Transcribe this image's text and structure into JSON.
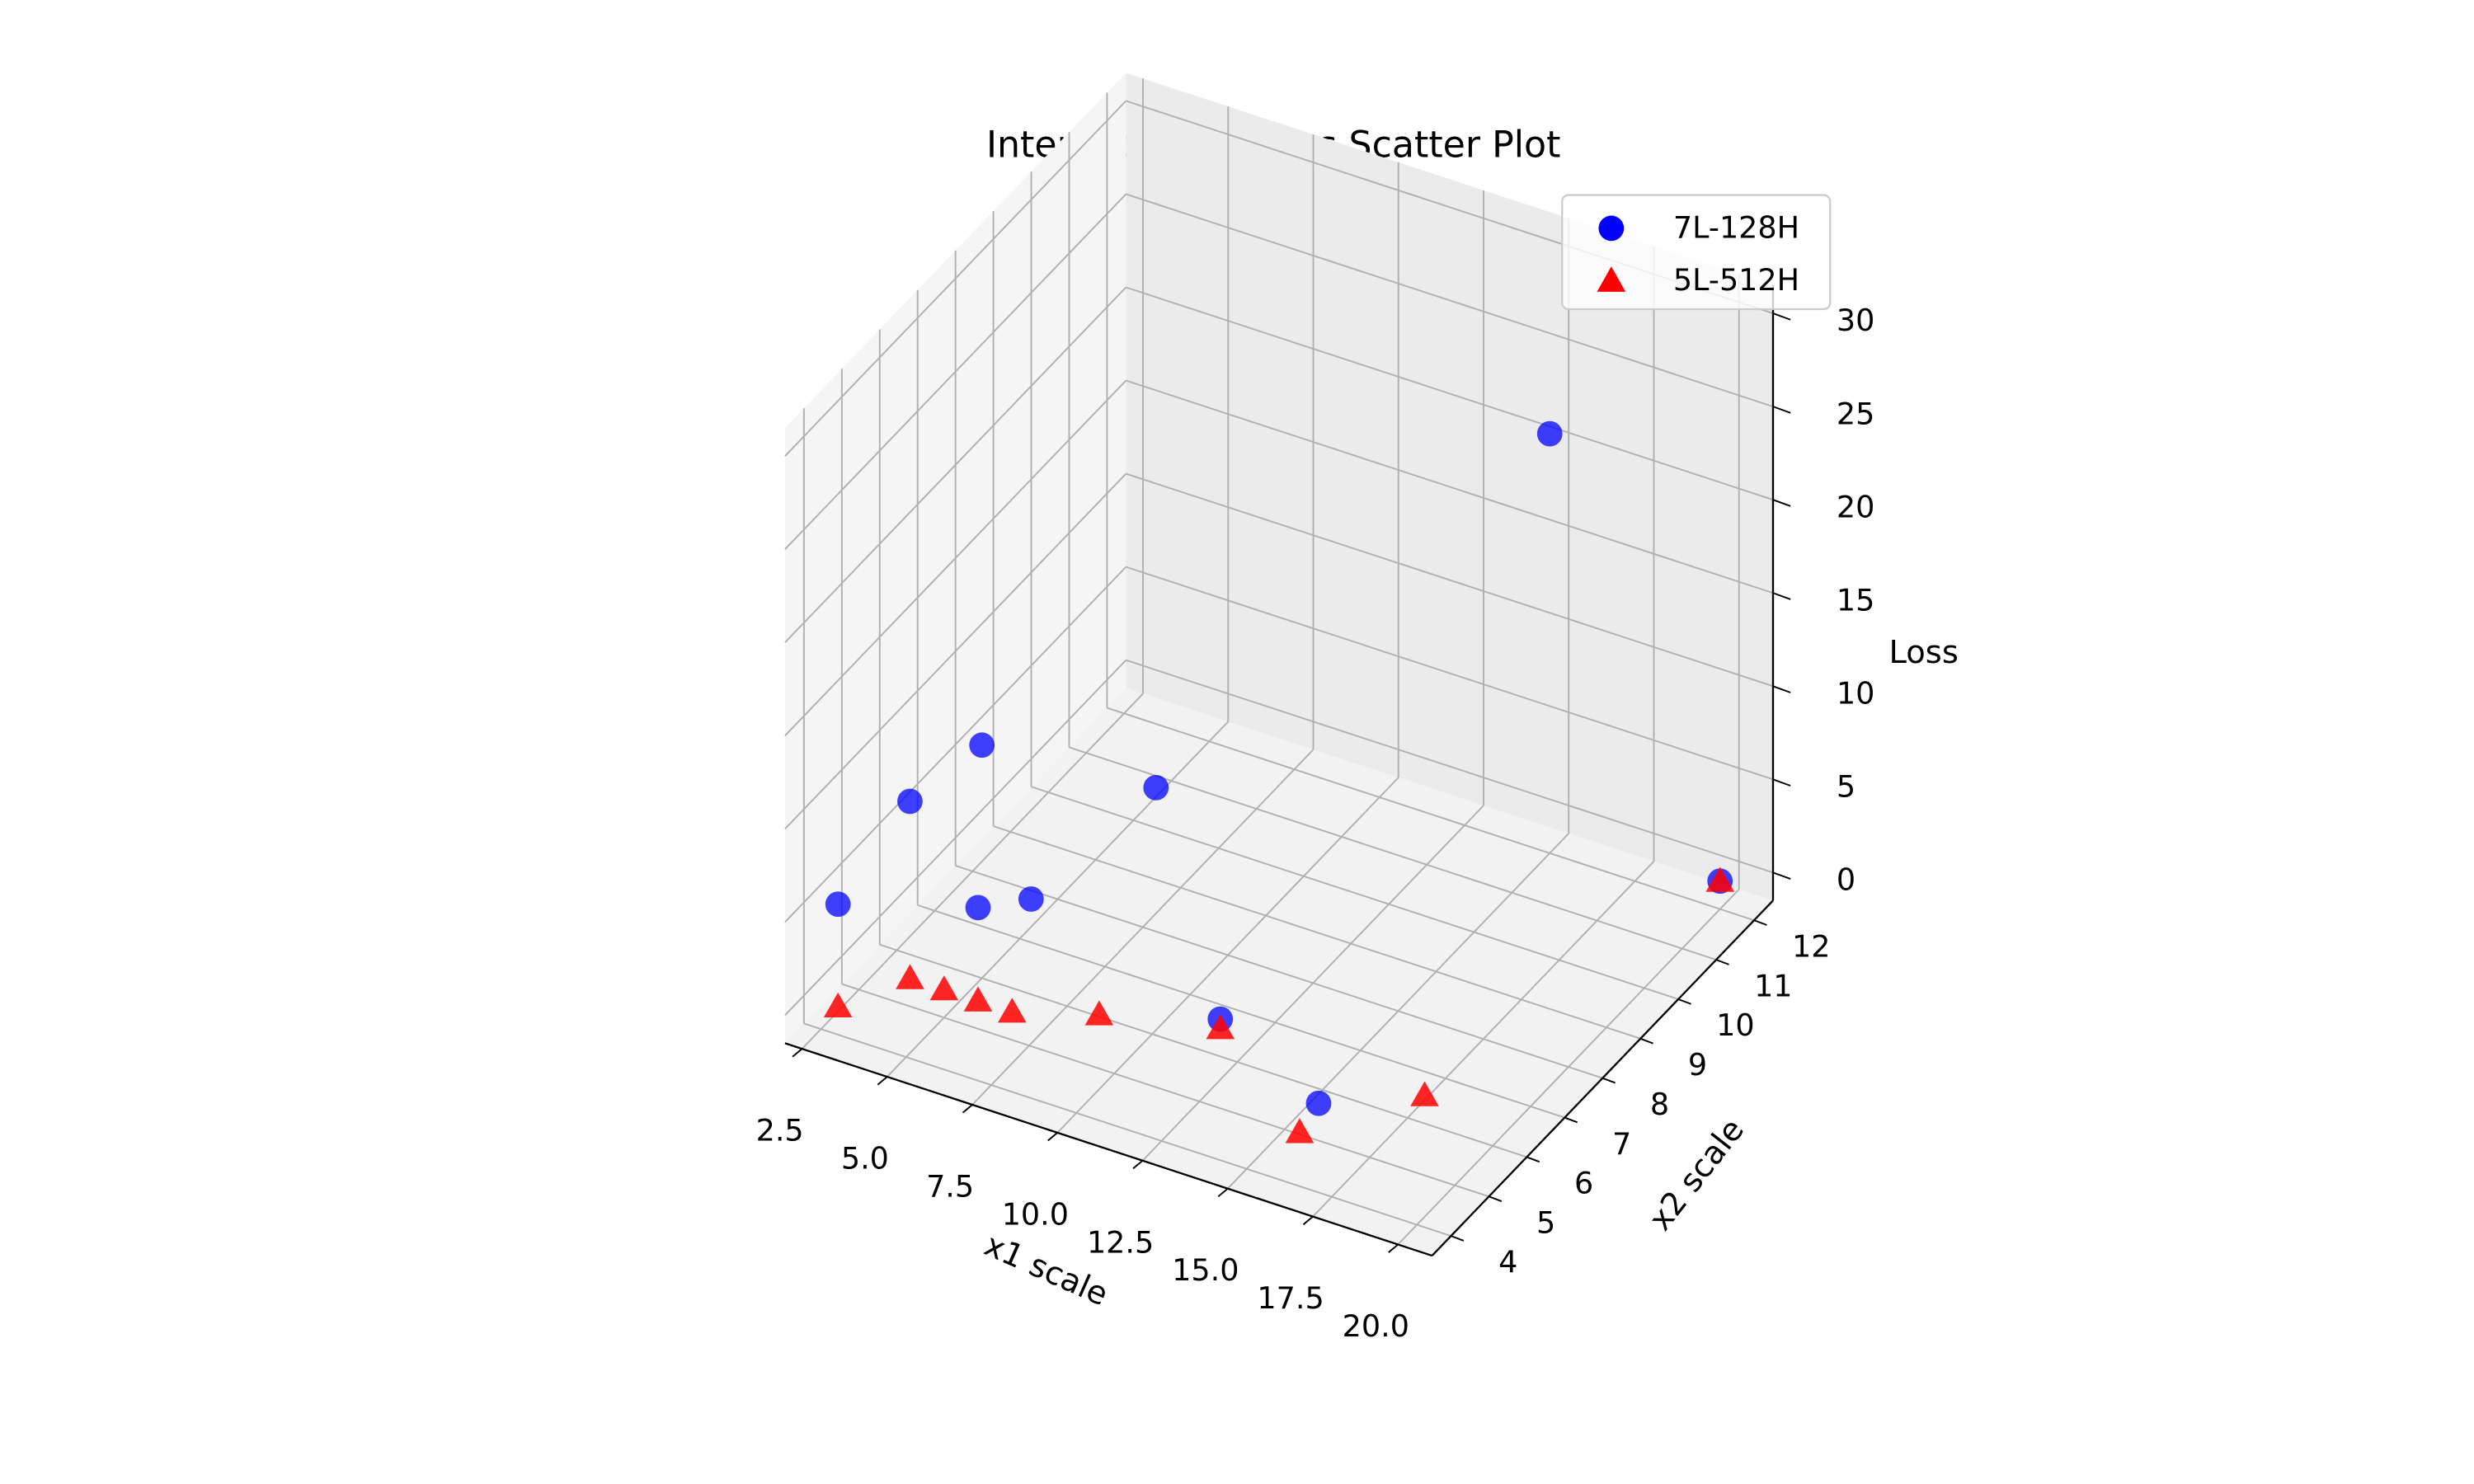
{
  "chart_data": {
    "type": "scatter",
    "title": "Interactive 3D Loss Scatter Plot",
    "xlabel": "x1 scale",
    "ylabel": "x2 scale",
    "zlabel": "Loss",
    "xlim": [
      2,
      21
    ],
    "ylim": [
      3.5,
      12.5
    ],
    "zlim": [
      -1.5,
      31.5
    ],
    "xticks": [
      2.5,
      5.0,
      7.5,
      10.0,
      12.5,
      15.0,
      17.5,
      20.0
    ],
    "xtick_labels": [
      "2.5",
      "5.0",
      "7.5",
      "10.0",
      "12.5",
      "15.0",
      "17.5",
      "20.0"
    ],
    "yticks": [
      4,
      5,
      6,
      7,
      8,
      9,
      10,
      11,
      12
    ],
    "ytick_labels": [
      "4",
      "5",
      "6",
      "7",
      "8",
      "9",
      "10",
      "11",
      "12"
    ],
    "zticks": [
      0,
      5,
      10,
      15,
      20,
      25,
      30
    ],
    "ztick_labels": [
      "0",
      "5",
      "10",
      "15",
      "20",
      "25",
      "30"
    ],
    "grid": true,
    "legend_position": "top-right",
    "series": [
      {
        "name": "7L-128H",
        "marker": "circle",
        "color": "#0000ff",
        "points": [
          {
            "x": 3,
            "y": 4,
            "z": 5.5
          },
          {
            "x": 4,
            "y": 5,
            "z": 9.5
          },
          {
            "x": 5,
            "y": 6,
            "z": 11
          },
          {
            "x": 6,
            "y": 5,
            "z": 5
          },
          {
            "x": 7,
            "y": 5.5,
            "z": 5
          },
          {
            "x": 9,
            "y": 7,
            "z": 9
          },
          {
            "x": 12,
            "y": 6,
            "z": 0.5
          },
          {
            "x": 16,
            "y": 5,
            "z": 0.5
          },
          {
            "x": 20,
            "y": 12,
            "z": 0
          },
          {
            "x": 15,
            "y": 12,
            "z": 21
          }
        ]
      },
      {
        "name": "5L-512H",
        "marker": "triangle",
        "color": "#ff0000",
        "points": [
          {
            "x": 3,
            "y": 4,
            "z": 0
          },
          {
            "x": 4,
            "y": 5,
            "z": 0
          },
          {
            "x": 5,
            "y": 5,
            "z": 0
          },
          {
            "x": 6,
            "y": 5,
            "z": 0
          },
          {
            "x": 7,
            "y": 5,
            "z": 0
          },
          {
            "x": 9,
            "y": 5.5,
            "z": 0
          },
          {
            "x": 12,
            "y": 6,
            "z": 0
          },
          {
            "x": 16,
            "y": 4.5,
            "z": 0
          },
          {
            "x": 18,
            "y": 6,
            "z": 0
          },
          {
            "x": 20,
            "y": 12,
            "z": 0
          }
        ]
      }
    ]
  }
}
